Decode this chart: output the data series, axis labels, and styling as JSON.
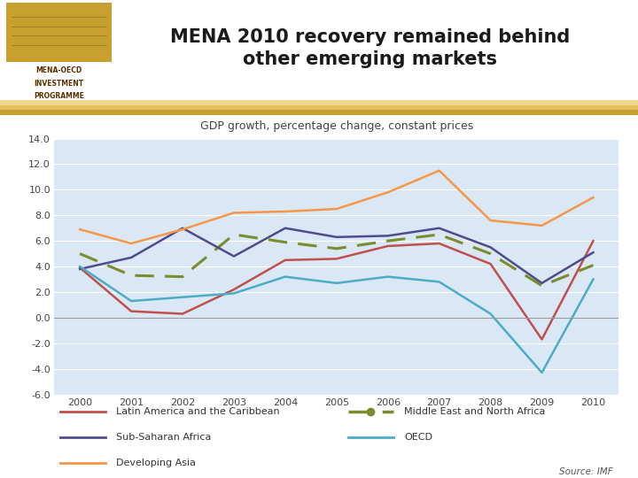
{
  "title": "MENA 2010 recovery remained behind\nother emerging markets",
  "subtitle": "GDP growth, percentage change, constant prices",
  "years": [
    2000,
    2001,
    2002,
    2003,
    2004,
    2005,
    2006,
    2007,
    2008,
    2009,
    2010
  ],
  "series": {
    "Latin America and the Caribbean": {
      "values": [
        3.9,
        0.5,
        0.3,
        2.2,
        4.5,
        4.6,
        5.6,
        5.8,
        4.2,
        -1.7,
        6.0
      ],
      "color": "#c0504d",
      "dashes": null,
      "linewidth": 1.8
    },
    "Middle East and North Africa": {
      "values": [
        5.0,
        3.3,
        3.2,
        6.5,
        5.9,
        5.4,
        6.0,
        6.5,
        5.0,
        2.5,
        4.1
      ],
      "color": "#7a8c2e",
      "dashes": [
        7,
        4
      ],
      "linewidth": 2.2
    },
    "Sub-Saharan Africa": {
      "values": [
        3.8,
        4.7,
        7.0,
        4.8,
        7.0,
        6.3,
        6.4,
        7.0,
        5.5,
        2.7,
        5.1
      ],
      "color": "#4f4b8c",
      "dashes": null,
      "linewidth": 1.8
    },
    "OECD": {
      "values": [
        4.0,
        1.3,
        1.6,
        1.9,
        3.2,
        2.7,
        3.2,
        2.8,
        0.3,
        -4.3,
        3.0
      ],
      "color": "#4bacc6",
      "dashes": null,
      "linewidth": 1.8
    },
    "Developing Asia": {
      "values": [
        6.9,
        5.8,
        6.9,
        8.2,
        8.3,
        8.5,
        9.8,
        11.5,
        7.6,
        7.2,
        9.4
      ],
      "color": "#f79646",
      "dashes": null,
      "linewidth": 1.8
    }
  },
  "ylim": [
    -6.0,
    14.0
  ],
  "yticks": [
    -6.0,
    -4.0,
    -2.0,
    0.0,
    2.0,
    4.0,
    6.0,
    8.0,
    10.0,
    12.0,
    14.0
  ],
  "background_color": "#d9e8f4",
  "header_bg": "#ffffff",
  "title_color": "#1a1a1a",
  "subtitle_color": "#444444",
  "tick_color": "#444444",
  "grid_color": "#ffffff",
  "zero_line_color": "#999999",
  "source_text": "Source: IMF",
  "stripe1_color": "#c8a030",
  "stripe2_color": "#e8c060",
  "stripe3_color": "#f0d890",
  "logo_gold": "#c8a030",
  "logo_text_color": "#5a3000"
}
